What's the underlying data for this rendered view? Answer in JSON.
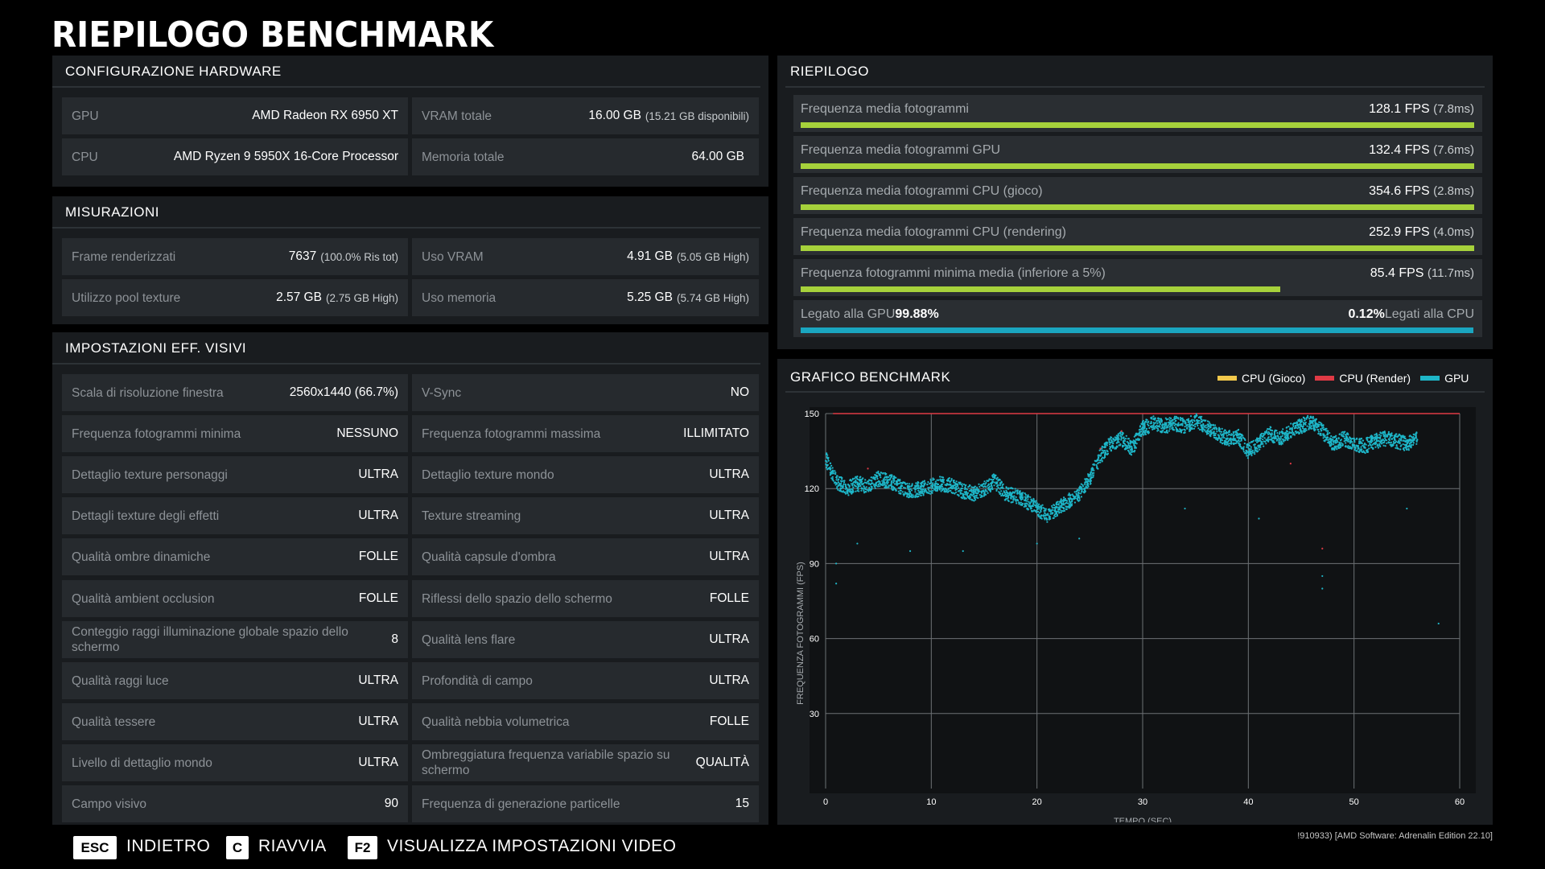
{
  "title": "RIEPILOGO BENCHMARK",
  "hardware": {
    "heading": "CONFIGURAZIONE HARDWARE",
    "gpu_label": "GPU",
    "gpu_value": "AMD Radeon RX 6950 XT",
    "cpu_label": "CPU",
    "cpu_value": "AMD Ryzen 9 5950X 16-Core Processor",
    "vram_label": "VRAM totale",
    "vram_value": "16.00 GB",
    "vram_sub": "(15.21 GB disponibili)",
    "mem_label": "Memoria totale",
    "mem_value": "64.00 GB"
  },
  "measurements": {
    "heading": "MISURAZIONI",
    "frames_label": "Frame renderizzati",
    "frames_value": "7637",
    "frames_sub": "(100.0% Ris tot)",
    "texpool_label": "Utilizzo pool texture",
    "texpool_value": "2.57 GB",
    "texpool_sub": "(2.75 GB High)",
    "vram_label": "Uso VRAM",
    "vram_value": "4.91 GB",
    "vram_sub": "(5.05 GB High)",
    "mem_label": "Uso memoria",
    "mem_value": "5.25 GB",
    "mem_sub": "(5.74 GB High)"
  },
  "visual_settings": {
    "heading": "IMPOSTAZIONI EFF. VISIVI",
    "left": [
      {
        "label": "Scala di risoluzione finestra",
        "value": "2560x1440 (66.7%)"
      },
      {
        "label": "Frequenza fotogrammi minima",
        "value": "NESSUNO"
      },
      {
        "label": "Dettaglio texture personaggi",
        "value": "ULTRA"
      },
      {
        "label": "Dettagli texture degli effetti",
        "value": "ULTRA"
      },
      {
        "label": "Qualità ombre dinamiche",
        "value": "FOLLE"
      },
      {
        "label": "Qualità ambient occlusion",
        "value": "FOLLE"
      },
      {
        "label": "Conteggio raggi illuminazione globale spazio dello schermo",
        "value": "8"
      },
      {
        "label": "Qualità raggi luce",
        "value": "ULTRA"
      },
      {
        "label": "Qualità tessere",
        "value": "ULTRA"
      },
      {
        "label": "Livello di dettaglio mondo",
        "value": "ULTRA"
      },
      {
        "label": "Campo visivo",
        "value": "90"
      }
    ],
    "right": [
      {
        "label": "V-Sync",
        "value": "NO"
      },
      {
        "label": "Frequenza fotogrammi massima",
        "value": "ILLIMITATO"
      },
      {
        "label": "Dettaglio texture mondo",
        "value": "ULTRA"
      },
      {
        "label": "Texture streaming",
        "value": "ULTRA"
      },
      {
        "label": "Qualità capsule d'ombra",
        "value": "ULTRA"
      },
      {
        "label": "Riflessi dello spazio dello schermo",
        "value": "FOLLE"
      },
      {
        "label": "Qualità lens flare",
        "value": "ULTRA"
      },
      {
        "label": "Profondità di campo",
        "value": "ULTRA"
      },
      {
        "label": "Qualità nebbia volumetrica",
        "value": "FOLLE"
      },
      {
        "label": "Ombreggiatura frequenza variabile spazio su schermo",
        "value": "QUALITÀ"
      },
      {
        "label": "Frequenza di generazione particelle",
        "value": "15"
      }
    ]
  },
  "summary": {
    "heading": "RIEPILOGO",
    "rows": [
      {
        "label": "Frequenza media fotogrammi",
        "value": "128.1 FPS",
        "ms": "(7.8ms)",
        "fraction": 1.0
      },
      {
        "label": "Frequenza media fotogrammi GPU",
        "value": "132.4 FPS",
        "ms": "(7.6ms)",
        "fraction": 1.0
      },
      {
        "label": "Frequenza media fotogrammi CPU (gioco)",
        "value": "354.6 FPS",
        "ms": "(2.8ms)",
        "fraction": 1.0
      },
      {
        "label": "Frequenza media fotogrammi CPU (rendering)",
        "value": "252.9 FPS",
        "ms": "(4.0ms)",
        "fraction": 1.0
      },
      {
        "label": "Frequenza fotogrammi minima media (inferiore a 5%)",
        "value": "85.4 FPS",
        "ms": "(11.7ms)",
        "fraction": 0.712
      }
    ],
    "bound": {
      "gpu_label": "Legato alla GPU",
      "gpu_value": "99.88%",
      "cpu_value": "0.12%",
      "cpu_label": "Legati alla CPU",
      "fraction": 0.9988
    },
    "bar_color": "#a6d13b",
    "bound_color": "#1aa6c0"
  },
  "chart_data": {
    "type": "scatter",
    "title": "GRAFICO BENCHMARK",
    "xlabel": "TEMPO (SEC)",
    "ylabel": "FREQUENZA FOTOGRAMMI (FPS)",
    "xlim": [
      0,
      60
    ],
    "ylim": [
      0,
      150
    ],
    "xticks": [
      0,
      10,
      20,
      30,
      40,
      50,
      60
    ],
    "yticks": [
      30,
      60,
      90,
      120,
      150
    ],
    "legend_position": "top-right",
    "series": [
      {
        "name": "CPU (Gioco)",
        "color": "#f2c84b",
        "values_note_fps": [
          150
        ]
      },
      {
        "name": "CPU (Render)",
        "color": "#e03a45",
        "line_value": 150
      },
      {
        "name": "GPU",
        "color": "#1eb6c8",
        "x": [
          0,
          1,
          2,
          3,
          4,
          5,
          6,
          7,
          8,
          9,
          10,
          11,
          12,
          13,
          14,
          15,
          16,
          17,
          18,
          19,
          20,
          21,
          22,
          23,
          24,
          25,
          26,
          27,
          28,
          29,
          30,
          31,
          32,
          33,
          34,
          35,
          36,
          37,
          38,
          39,
          40,
          41,
          42,
          43,
          44,
          45,
          46,
          47,
          48,
          49,
          50,
          51,
          52,
          53,
          54,
          55,
          56
        ],
        "y": [
          132,
          123,
          120,
          122,
          121,
          124,
          123,
          121,
          119,
          120,
          121,
          122,
          121,
          119,
          118,
          120,
          123,
          118,
          117,
          115,
          112,
          109,
          112,
          115,
          118,
          124,
          133,
          138,
          140,
          136,
          144,
          146,
          145,
          146,
          145,
          147,
          145,
          142,
          140,
          141,
          135,
          138,
          142,
          140,
          143,
          145,
          147,
          143,
          138,
          140,
          138,
          137,
          139,
          140,
          139,
          138,
          140
        ]
      }
    ]
  },
  "footer": {
    "esc_key": "ESC",
    "esc_label": "INDIETRO",
    "c_key": "C",
    "c_label": "RIAVVIA",
    "f2_key": "F2",
    "f2_label": "VISUALIZZA IMPOSTAZIONI VIDEO"
  },
  "version": "!910933) [AMD Software: Adrenalin Edition 22.10]"
}
